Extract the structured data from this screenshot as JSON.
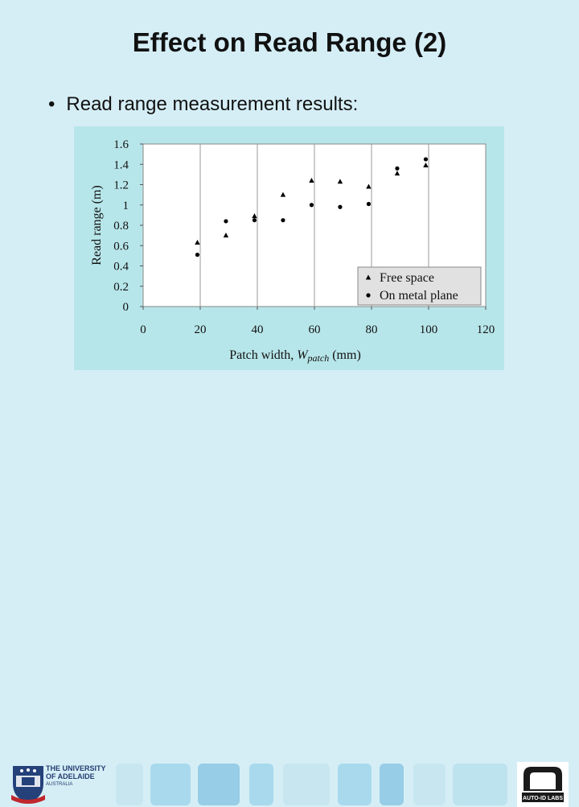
{
  "slide": {
    "title": "Effect on Read Range (2)",
    "bullet": "Read range measurement results:",
    "bullet_symbol": "•"
  },
  "logos": {
    "left_text_1": "THE UNIVERSITY",
    "left_text_2": "OF ADELAIDE",
    "left_text_3": "AUSTRALIA",
    "right_text": "AUTO-ID LABS"
  },
  "chart_data": {
    "type": "scatter",
    "xlabel_prefix": "Patch width, ",
    "xlabel_var": "W",
    "xlabel_sub": "patch",
    "xlabel_unit": " (mm)",
    "ylabel": "Read range (m)",
    "xlim": [
      0,
      120
    ],
    "ylim": [
      0,
      1.6
    ],
    "xticks": [
      "0",
      "20",
      "40",
      "60",
      "80",
      "100",
      "120"
    ],
    "yticks": [
      "0",
      "0.2",
      "0.4",
      "0.6",
      "0.8",
      "1",
      "1.2",
      "1.4",
      "1.6"
    ],
    "grid": "vertical",
    "legend_position": "bottom-right",
    "series": [
      {
        "name": "Free space",
        "marker": "triangle",
        "color": "#000000",
        "x": [
          19,
          29,
          39,
          49,
          59,
          69,
          79,
          89,
          99
        ],
        "y": [
          0.63,
          0.7,
          0.89,
          1.1,
          1.24,
          1.23,
          1.18,
          1.31,
          1.39
        ]
      },
      {
        "name": "On metal plane",
        "marker": "circle",
        "color": "#000000",
        "x": [
          19,
          29,
          39,
          49,
          59,
          69,
          79,
          89,
          99
        ],
        "y": [
          0.51,
          0.84,
          0.85,
          0.85,
          1.0,
          0.98,
          1.01,
          1.36,
          1.45
        ]
      }
    ]
  }
}
